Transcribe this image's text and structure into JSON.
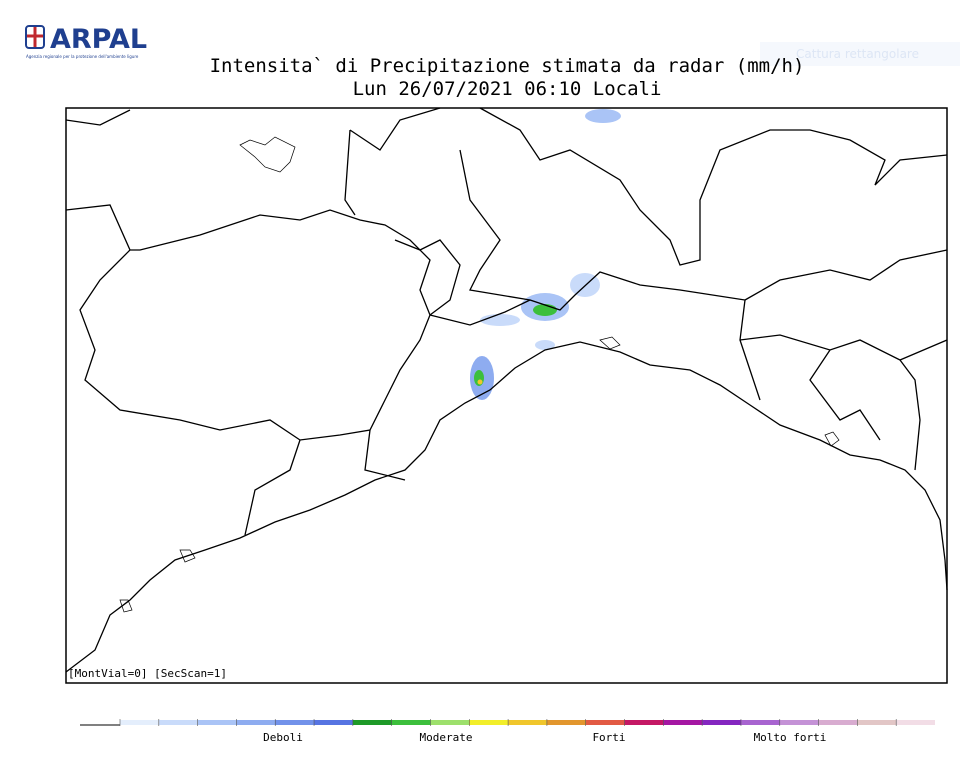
{
  "header": {
    "logo": "ARPAL",
    "agency": "Agenzia regionale per la protezione dell'ambiente ligure",
    "overlay": "Cattura rettangolare"
  },
  "map": {
    "title": "Intensita` di Precipitazione stimata da radar (mm/h)",
    "subtitle": "Lun 26/07/2021 06:10 Locali",
    "footer": "[MontVial=0] [SecScan=1]"
  },
  "legend": {
    "labels": [
      "Deboli",
      "Moderate",
      "Forti",
      "Molto forti"
    ],
    "colors": [
      "#e4eefc",
      "#c9dbfa",
      "#aac4f6",
      "#8eacf0",
      "#7292ea",
      "#5674e2",
      "#1e9a28",
      "#3cbf3c",
      "#9de06c",
      "#f2ee2a",
      "#f0c62c",
      "#e2962e",
      "#e25a44",
      "#c41864",
      "#a416a2",
      "#8426c0",
      "#a864d0",
      "#c492d6",
      "#d8acd0",
      "#e2c6c6",
      "#f2dde6"
    ]
  }
}
